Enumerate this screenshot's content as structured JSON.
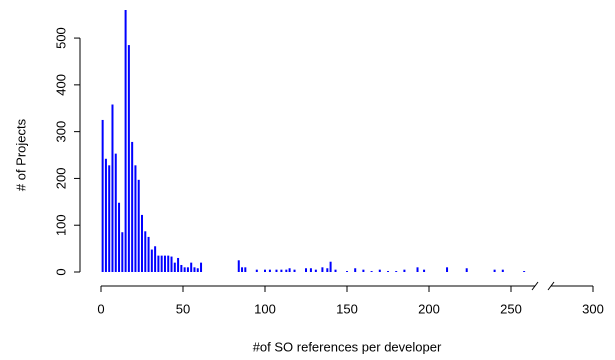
{
  "chart_data": {
    "type": "bar",
    "x_label": "#of SO references per developer",
    "y_label": "# of Projects",
    "x": [
      1,
      3,
      5,
      7,
      9,
      11,
      13,
      15,
      17,
      19,
      21,
      23,
      25,
      27,
      29,
      31,
      33,
      35,
      37,
      39,
      41,
      43,
      45,
      47,
      49,
      51,
      53,
      55,
      57,
      59,
      61,
      84,
      86,
      88,
      95,
      100,
      103,
      107,
      110,
      113,
      115,
      118,
      125,
      128,
      131,
      135,
      138,
      140,
      143,
      150,
      155,
      160,
      165,
      170,
      175,
      180,
      185,
      193,
      197,
      211,
      223,
      240,
      245,
      258
    ],
    "values": [
      325,
      242,
      228,
      358,
      253,
      148,
      85,
      560,
      485,
      278,
      228,
      197,
      122,
      87,
      75,
      48,
      55,
      35,
      35,
      35,
      35,
      33,
      20,
      30,
      15,
      10,
      10,
      20,
      10,
      8,
      20,
      25,
      10,
      10,
      5,
      5,
      5,
      5,
      5,
      5,
      8,
      5,
      8,
      8,
      5,
      10,
      8,
      22,
      5,
      2,
      8,
      5,
      2,
      5,
      2,
      2,
      5,
      10,
      5,
      10,
      8,
      5,
      5,
      2
    ],
    "color": "#0000ff",
    "xlim": [
      0,
      300
    ],
    "xticks": [
      0,
      50,
      100,
      150,
      200,
      250,
      300
    ],
    "ylim": [
      0,
      560
    ],
    "yticks": [
      0,
      100,
      200,
      300,
      400,
      500
    ]
  }
}
